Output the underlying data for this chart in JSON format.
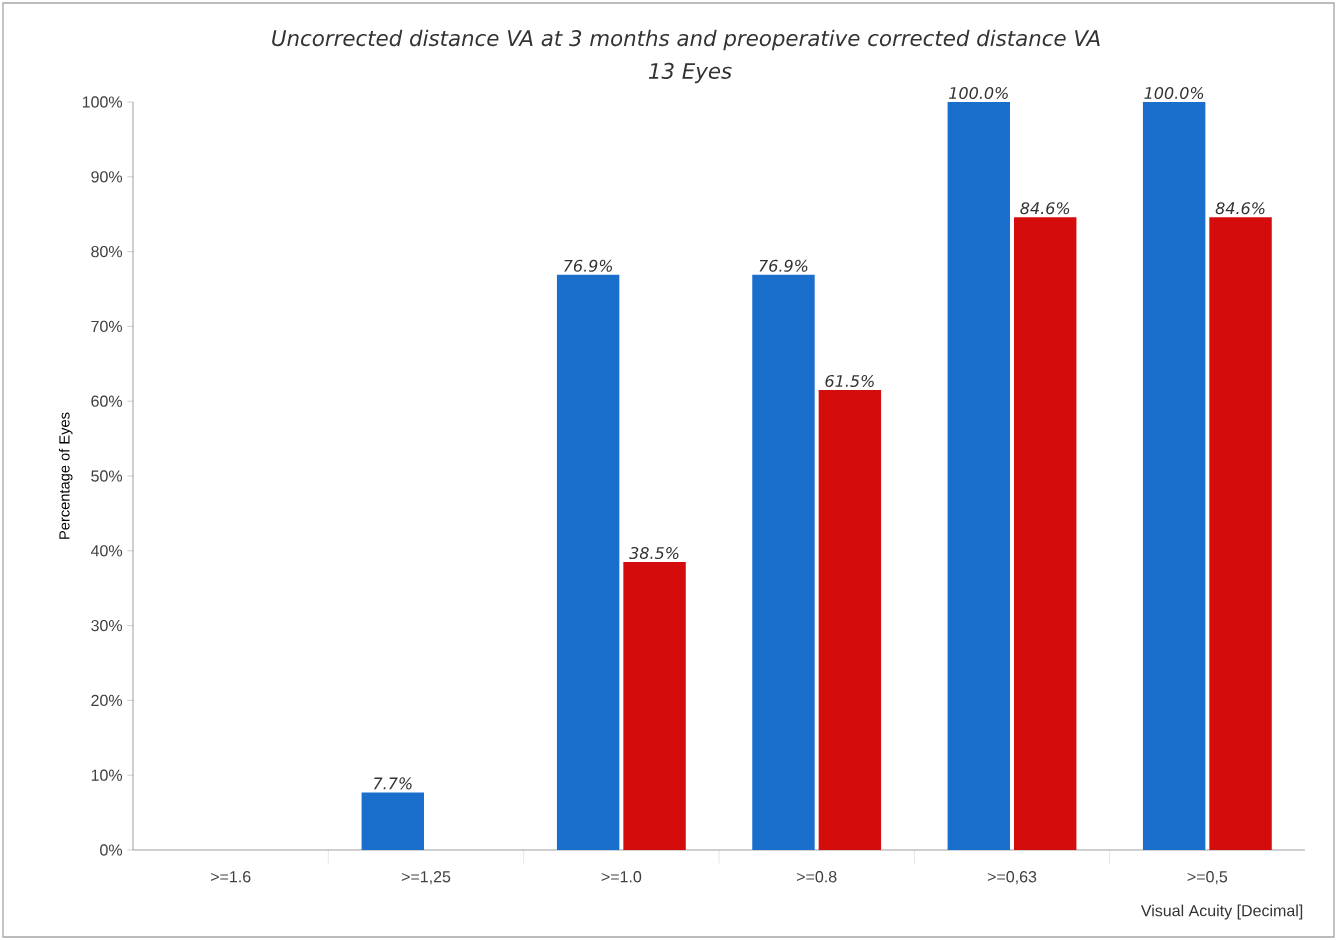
{
  "chart_data": {
    "type": "bar",
    "title": "Uncorrected distance VA at 3 months and preoperative corrected distance VA",
    "subtitle": "13 Eyes",
    "xlabel": "Visual Acuity [Decimal]",
    "ylabel": "Percentage of Eyes",
    "categories": [
      ">=1.6",
      ">=1,25",
      ">=1.0",
      ">=0.8",
      ">=0,63",
      ">=0,5"
    ],
    "series": [
      {
        "color": "#1a6fcc",
        "values": [
          0,
          7.7,
          76.9,
          76.9,
          100,
          100
        ],
        "value_labels": [
          null,
          "7.7%",
          "76.9%",
          "76.9%",
          "100.0%",
          "100.0%"
        ]
      },
      {
        "color": "#d40c0c",
        "values": [
          0,
          0,
          38.5,
          61.5,
          84.6,
          84.6
        ],
        "value_labels": [
          null,
          null,
          "38.5%",
          "61.5%",
          "84.6%",
          "84.6%"
        ]
      }
    ],
    "ylim": [
      0,
      100
    ],
    "yticks": [
      {
        "value": 0,
        "label": "0%"
      },
      {
        "value": 10,
        "label": "10%"
      },
      {
        "value": 20,
        "label": "20%"
      },
      {
        "value": 30,
        "label": "30%"
      },
      {
        "value": 40,
        "label": "40%"
      },
      {
        "value": 50,
        "label": "50%"
      },
      {
        "value": 60,
        "label": "60%"
      },
      {
        "value": 70,
        "label": "70%"
      },
      {
        "value": 80,
        "label": "80%"
      },
      {
        "value": 90,
        "label": "90%"
      },
      {
        "value": 100,
        "label": "100%"
      }
    ],
    "grid": false
  }
}
